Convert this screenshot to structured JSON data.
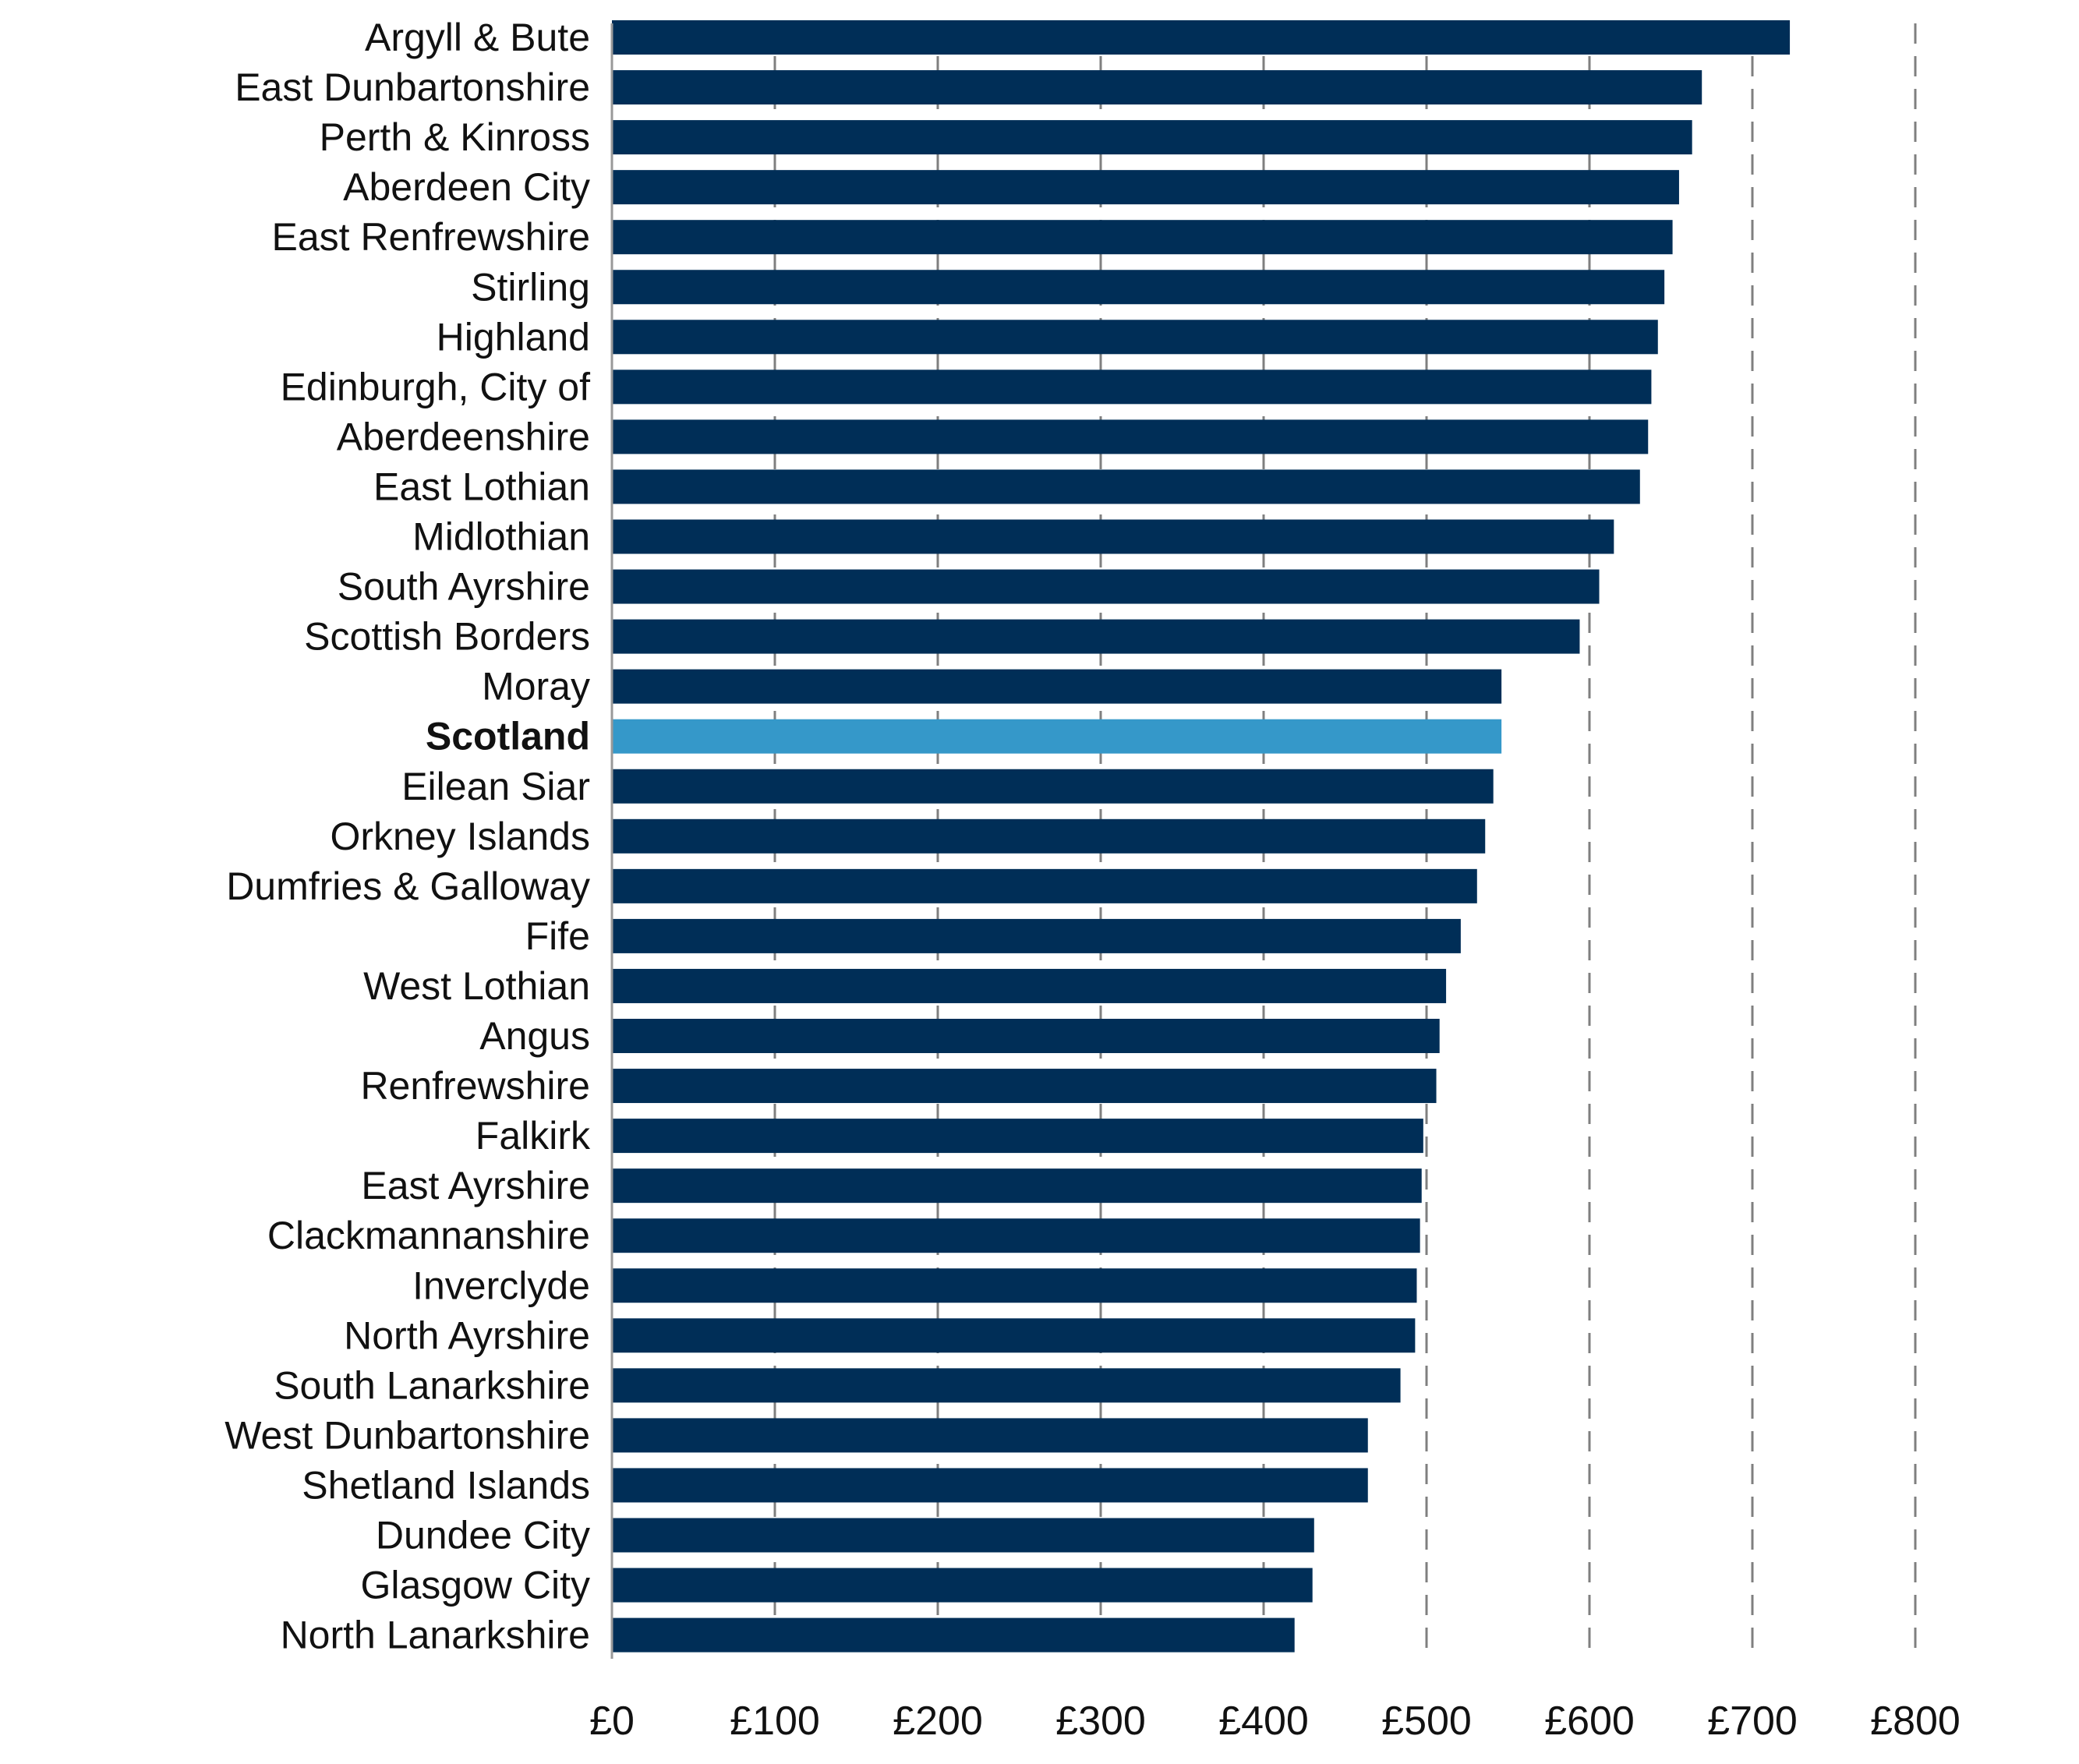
{
  "chart_data": {
    "type": "bar",
    "orientation": "horizontal",
    "title": "",
    "xlabel": "",
    "ylabel": "",
    "xlim": [
      0,
      800
    ],
    "ticks": [
      0,
      100,
      200,
      300,
      400,
      500,
      600,
      700,
      800
    ],
    "tick_labels": [
      "£0",
      "£100",
      "£200",
      "£300",
      "£400",
      "£500",
      "£600",
      "£700",
      "£800"
    ],
    "grid": "vertical dashed",
    "legend": "none",
    "colors": {
      "bar": "#002e57",
      "highlight": "#3598c9",
      "grid": "#7f7f7f",
      "axis": "#999999"
    },
    "highlight_category": "Scotland",
    "categories": [
      "Argyll & Bute",
      "East Dunbartonshire",
      "Perth & Kinross",
      "Aberdeen City",
      "East Renfrewshire",
      "Stirling",
      "Highland",
      "Edinburgh, City of",
      "Aberdeenshire",
      "East Lothian",
      "Midlothian",
      "South Ayrshire",
      "Scottish Borders",
      "Moray",
      "Scotland",
      "Eilean Siar",
      "Orkney Islands",
      "Dumfries & Galloway",
      "Fife",
      "West Lothian",
      "Angus",
      "Renfrewshire",
      "Falkirk",
      "East Ayrshire",
      "Clackmannanshire",
      "Inverclyde",
      "North Ayrshire",
      "South Lanarkshire",
      "West Dunbartonshire",
      "Shetland Islands",
      "Dundee City",
      "Glasgow City",
      "North Lanarkshire"
    ],
    "values": [
      723,
      669,
      663,
      655,
      651,
      646,
      642,
      638,
      636,
      631,
      615,
      606,
      594,
      546,
      546,
      541,
      536,
      531,
      521,
      512,
      508,
      506,
      498,
      497,
      496,
      494,
      493,
      484,
      464,
      464,
      431,
      430,
      419
    ]
  }
}
